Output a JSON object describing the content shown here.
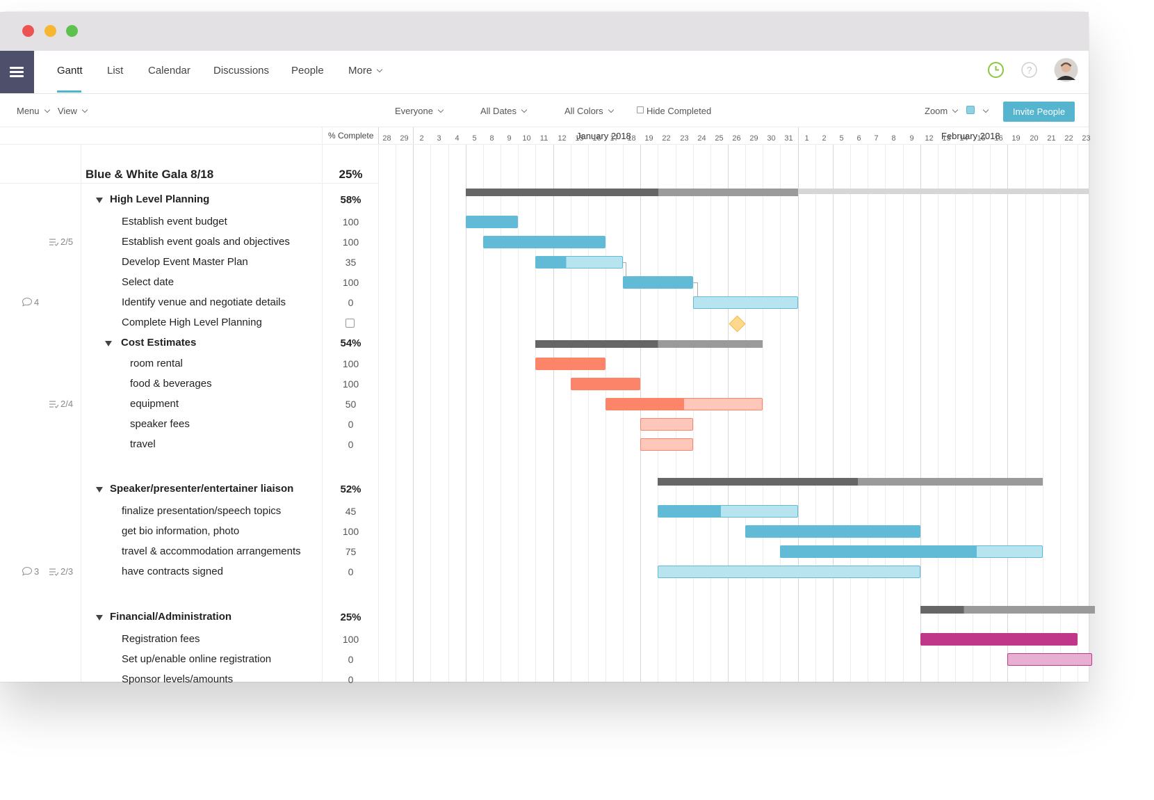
{
  "nav": {
    "tabs": [
      "Gantt",
      "List",
      "Calendar",
      "Discussions",
      "People",
      "More"
    ],
    "active": "Gantt"
  },
  "toolbar": {
    "menu": "Menu",
    "view": "View",
    "everyone": "Everyone",
    "all_dates": "All Dates",
    "all_colors": "All Colors",
    "hide_completed": "Hide Completed",
    "zoom": "Zoom",
    "invite": "Invite People"
  },
  "grid": {
    "pct_header": "% Complete",
    "months": [
      "January 2018",
      "February 2018"
    ],
    "days": [
      "28",
      "29",
      "2",
      "3",
      "4",
      "5",
      "8",
      "9",
      "10",
      "11",
      "12",
      "15",
      "16",
      "17",
      "18",
      "19",
      "22",
      "23",
      "24",
      "25",
      "26",
      "29",
      "30",
      "31",
      "1",
      "2",
      "5",
      "6",
      "7",
      "8",
      "9",
      "12",
      "13",
      "14",
      "15",
      "16",
      "19",
      "20",
      "21",
      "22",
      "23"
    ]
  },
  "project": {
    "title": "Blue & White Gala 8/18",
    "pct": "25%"
  },
  "rows": [
    {
      "label": "High Level Planning",
      "pct": "58%",
      "level": 0,
      "group": true
    },
    {
      "label": "Establish event budget",
      "pct": "100",
      "level": 1
    },
    {
      "label": "Establish event goals and objectives",
      "pct": "100",
      "level": 1,
      "badge_check": "2/5"
    },
    {
      "label": "Develop Event Master Plan",
      "pct": "35",
      "level": 1
    },
    {
      "label": "Select date",
      "pct": "100",
      "level": 1
    },
    {
      "label": "Identify venue and negotiate details",
      "pct": "0",
      "level": 1,
      "badge_comment": "4"
    },
    {
      "label": "Complete High Level Planning",
      "pct": "",
      "level": 1,
      "milestone": true
    },
    {
      "label": "Cost Estimates",
      "pct": "54%",
      "level": 1,
      "group": true
    },
    {
      "label": "room rental",
      "pct": "100",
      "level": 2
    },
    {
      "label": "food & beverages",
      "pct": "100",
      "level": 2
    },
    {
      "label": "equipment",
      "pct": "50",
      "level": 2,
      "badge_check": "2/4"
    },
    {
      "label": "speaker fees",
      "pct": "0",
      "level": 2
    },
    {
      "label": "travel",
      "pct": "0",
      "level": 2
    },
    {
      "label": "Speaker/presenter/entertainer liaison",
      "pct": "52%",
      "level": 0,
      "group": true
    },
    {
      "label": "finalize presentation/speech topics",
      "pct": "45",
      "level": 1
    },
    {
      "label": "get bio information, photo",
      "pct": "100",
      "level": 1
    },
    {
      "label": "travel & accommodation arrangements",
      "pct": "75",
      "level": 1
    },
    {
      "label": "have contracts signed",
      "pct": "0",
      "level": 1,
      "badge_comment": "3",
      "badge_check": "2/3"
    },
    {
      "label": "Financial/Administration",
      "pct": "25%",
      "level": 0,
      "group": true
    },
    {
      "label": "Registration fees",
      "pct": "100",
      "level": 1
    },
    {
      "label": "Set up/enable online registration",
      "pct": "0",
      "level": 1
    },
    {
      "label": "Sponsor levels/amounts",
      "pct": "0",
      "level": 1
    }
  ],
  "colors": {
    "blue": "#62bbd6",
    "blue_light": "#b7e4ef",
    "red": "#fb8469",
    "red_light": "#fec7b9",
    "magenta": "#c0378a",
    "magenta_light": "#e8afd2",
    "summary_dark": "#666666",
    "summary_light": "#9a9a9a",
    "project_bar": "#d6d6d6"
  }
}
